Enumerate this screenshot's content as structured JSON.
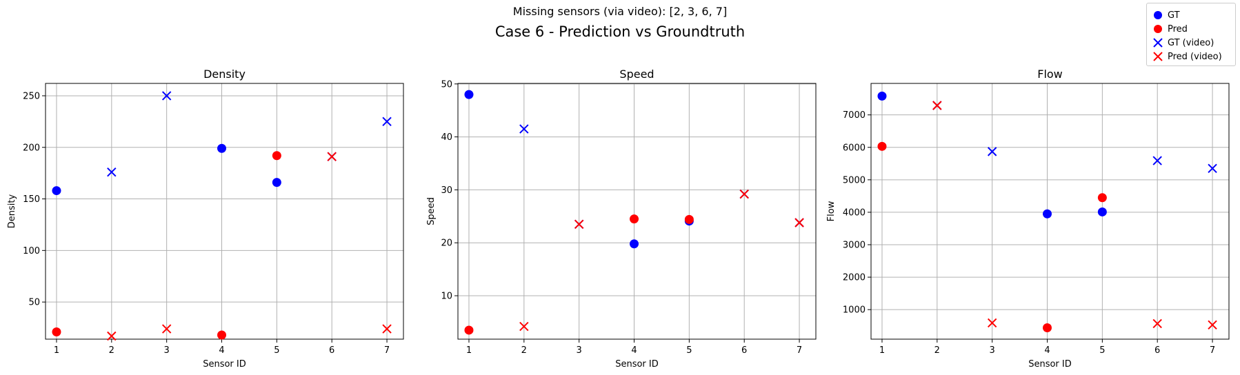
{
  "figure": {
    "subtitle": "Missing sensors (via video): [2, 3, 6, 7]",
    "title": "Case 6 - Prediction vs Groundtruth"
  },
  "legend": {
    "placement": "top-right",
    "entries": [
      {
        "label": "GT",
        "marker": "circle",
        "color": "#0000ff"
      },
      {
        "label": "Pred",
        "marker": "circle",
        "color": "#ff0000"
      },
      {
        "label": "GT (video)",
        "marker": "x",
        "color": "#0000ff"
      },
      {
        "label": "Pred (video)",
        "marker": "x",
        "color": "#ff0000"
      }
    ]
  },
  "colors": {
    "gt": "#0000ff",
    "pred": "#ff0000",
    "grid": "#b0b0b0"
  },
  "chart_data": [
    {
      "type": "scatter",
      "title": "Density",
      "xlabel": "Sensor ID",
      "ylabel": "Density",
      "xlim": [
        0.8,
        7.3
      ],
      "ylim": [
        14,
        262
      ],
      "xticks": [
        1,
        2,
        3,
        4,
        5,
        6,
        7
      ],
      "yticks": [
        50,
        100,
        150,
        200,
        250
      ],
      "grid": true,
      "series": [
        {
          "name": "GT",
          "marker": "circle",
          "color": "#0000ff",
          "points": [
            [
              1,
              158
            ],
            [
              4,
              199
            ],
            [
              5,
              166
            ]
          ]
        },
        {
          "name": "Pred",
          "marker": "circle",
          "color": "#ff0000",
          "points": [
            [
              1,
              21
            ],
            [
              4,
              18
            ],
            [
              5,
              192
            ]
          ]
        },
        {
          "name": "GT (video)",
          "marker": "x",
          "color": "#0000ff",
          "points": [
            [
              2,
              176
            ],
            [
              3,
              250
            ],
            [
              6,
              191
            ],
            [
              7,
              225
            ]
          ]
        },
        {
          "name": "Pred (video)",
          "marker": "x",
          "color": "#ff0000",
          "points": [
            [
              2,
              17
            ],
            [
              3,
              24
            ],
            [
              6,
              191
            ],
            [
              7,
              24
            ]
          ]
        }
      ]
    },
    {
      "type": "scatter",
      "title": "Speed",
      "xlabel": "Sensor ID",
      "ylabel": "Speed",
      "xlim": [
        0.8,
        7.3
      ],
      "ylim": [
        1.8,
        50.1
      ],
      "xticks": [
        1,
        2,
        3,
        4,
        5,
        6,
        7
      ],
      "yticks": [
        10,
        20,
        30,
        40,
        50
      ],
      "grid": true,
      "series": [
        {
          "name": "GT",
          "marker": "circle",
          "color": "#0000ff",
          "points": [
            [
              1,
              48
            ],
            [
              4,
              19.8
            ],
            [
              5,
              24.1
            ]
          ]
        },
        {
          "name": "Pred",
          "marker": "circle",
          "color": "#ff0000",
          "points": [
            [
              1,
              3.5
            ],
            [
              4,
              24.5
            ],
            [
              5,
              24.4
            ]
          ]
        },
        {
          "name": "GT (video)",
          "marker": "x",
          "color": "#0000ff",
          "points": [
            [
              2,
              41.5
            ],
            [
              3,
              23.5
            ],
            [
              6,
              29.2
            ],
            [
              7,
              23.8
            ]
          ]
        },
        {
          "name": "Pred (video)",
          "marker": "x",
          "color": "#ff0000",
          "points": [
            [
              2,
              4.2
            ],
            [
              3,
              23.5
            ],
            [
              6,
              29.2
            ],
            [
              7,
              23.8
            ]
          ]
        }
      ]
    },
    {
      "type": "scatter",
      "title": "Flow",
      "xlabel": "Sensor ID",
      "ylabel": "Flow",
      "xlim": [
        0.8,
        7.3
      ],
      "ylim": [
        90,
        7970
      ],
      "xticks": [
        1,
        2,
        3,
        4,
        5,
        6,
        7
      ],
      "yticks": [
        1000,
        2000,
        3000,
        4000,
        5000,
        6000,
        7000
      ],
      "grid": true,
      "series": [
        {
          "name": "GT",
          "marker": "circle",
          "color": "#0000ff",
          "points": [
            [
              1,
              7580
            ],
            [
              4,
              3950
            ],
            [
              5,
              4010
            ]
          ]
        },
        {
          "name": "Pred",
          "marker": "circle",
          "color": "#ff0000",
          "points": [
            [
              1,
              6030
            ],
            [
              4,
              440
            ],
            [
              5,
              4450
            ]
          ]
        },
        {
          "name": "GT (video)",
          "marker": "x",
          "color": "#0000ff",
          "points": [
            [
              2,
              7290
            ],
            [
              3,
              5870
            ],
            [
              6,
              5590
            ],
            [
              7,
              5350
            ]
          ]
        },
        {
          "name": "Pred (video)",
          "marker": "x",
          "color": "#ff0000",
          "points": [
            [
              2,
              7290
            ],
            [
              3,
              590
            ],
            [
              6,
              570
            ],
            [
              7,
              530
            ]
          ]
        }
      ]
    }
  ]
}
